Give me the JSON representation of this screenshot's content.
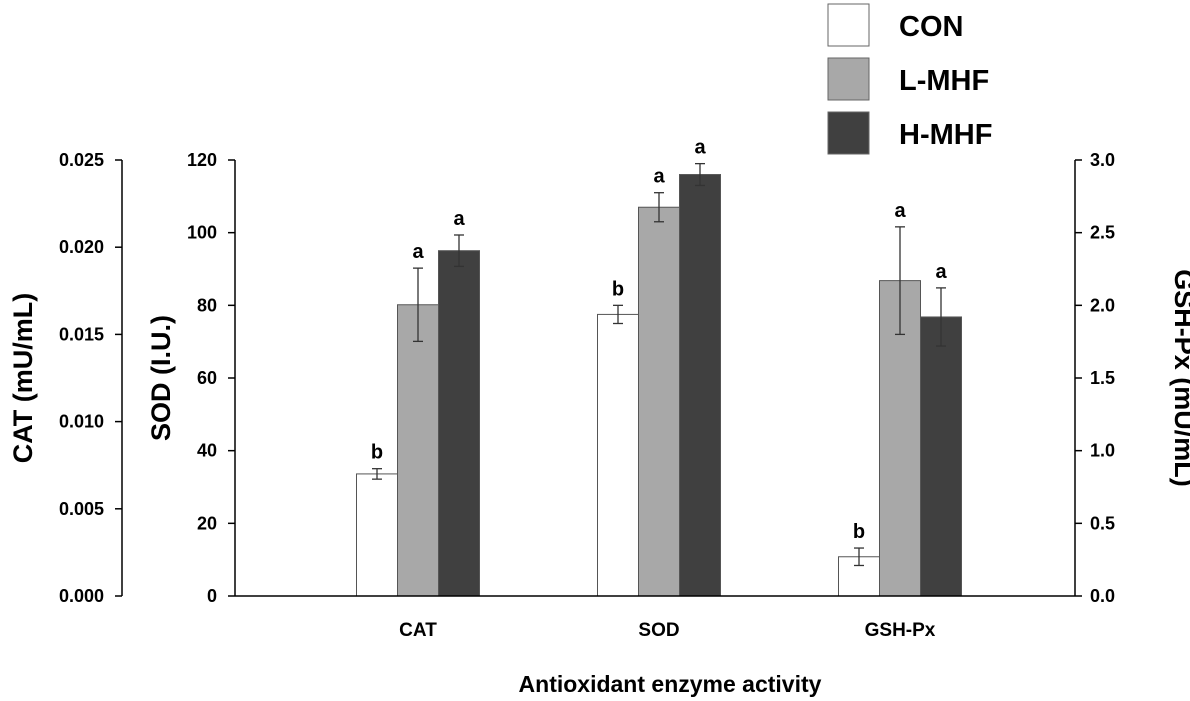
{
  "chart_data": {
    "type": "bar",
    "xlabel": "Antioxidant enzyme activity",
    "categories": [
      "CAT",
      "SOD",
      "GSH-Px"
    ],
    "series": [
      {
        "name": "CON",
        "color": "#ffffff"
      },
      {
        "name": "L-MHF",
        "color": "#a8a8a8"
      },
      {
        "name": "H-MHF",
        "color": "#404040"
      }
    ],
    "axes": {
      "cat": {
        "label": "CAT (mU/mL)",
        "min": 0,
        "max": 0.025,
        "ticks": [
          "0.000",
          "0.005",
          "0.010",
          "0.015",
          "0.020",
          "0.025"
        ]
      },
      "sod": {
        "label": "SOD (I.U.)",
        "min": 0,
        "max": 120,
        "ticks": [
          "0",
          "20",
          "40",
          "60",
          "80",
          "100",
          "120"
        ]
      },
      "gsh": {
        "label": "GSH-Px  (mU/mL)",
        "min": 0,
        "max": 3.0,
        "ticks": [
          "0.0",
          "0.5",
          "1.0",
          "1.5",
          "2.0",
          "2.5",
          "3.0"
        ]
      }
    },
    "groups": [
      {
        "category": "CAT",
        "axis": "cat",
        "bars": [
          {
            "series": "CON",
            "value": 0.007,
            "error": 0.0003,
            "sig": "b"
          },
          {
            "series": "L-MHF",
            "value": 0.0167,
            "error": 0.0021,
            "sig": "a"
          },
          {
            "series": "H-MHF",
            "value": 0.0198,
            "error": 0.0009,
            "sig": "a"
          }
        ]
      },
      {
        "category": "SOD",
        "axis": "sod",
        "bars": [
          {
            "series": "CON",
            "value": 77.5,
            "error": 2.5,
            "sig": "b"
          },
          {
            "series": "L-MHF",
            "value": 107,
            "error": 4,
            "sig": "a"
          },
          {
            "series": "H-MHF",
            "value": 116,
            "error": 3,
            "sig": "a"
          }
        ]
      },
      {
        "category": "GSH-Px",
        "axis": "gsh",
        "bars": [
          {
            "series": "CON",
            "value": 0.27,
            "error": 0.06,
            "sig": "b"
          },
          {
            "series": "L-MHF",
            "value": 2.17,
            "error": 0.37,
            "sig": "a"
          },
          {
            "series": "H-MHF",
            "value": 1.92,
            "error": 0.2,
            "sig": "a"
          }
        ]
      }
    ]
  }
}
